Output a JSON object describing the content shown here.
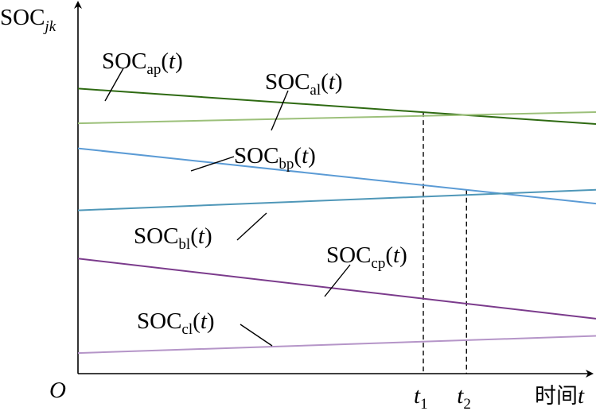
{
  "chart_data": {
    "type": "line",
    "title": "",
    "xlabel": "时间t",
    "ylabel": "SOCjk",
    "origin_label": "O",
    "x_ticks": [
      {
        "name": "t1",
        "label_main": "t",
        "label_sub": "1",
        "x": 0.8
      },
      {
        "name": "t2",
        "label_main": "t",
        "label_sub": "2",
        "x": 0.9
      }
    ],
    "xlim": [
      0,
      1.2
    ],
    "ylim": [
      0,
      1
    ],
    "xlabel_parts": {
      "cn": "时间",
      "var": "t"
    },
    "ylabel_parts": {
      "main": "SOC",
      "sub": "jk"
    },
    "grid": false,
    "series": [
      {
        "name": "SOCap(t)",
        "label_main": "SOC",
        "label_sub": "ap",
        "label_tail": "(t)",
        "color": "#2e6a12",
        "x": [
          0,
          1.2
        ],
        "y": [
          0.763,
          0.668
        ]
      },
      {
        "name": "SOCal(t)",
        "label_main": "SOC",
        "label_sub": "al",
        "label_tail": "(t)",
        "color": "#9cc07a",
        "x": [
          0,
          1.2
        ],
        "y": [
          0.67,
          0.7
        ]
      },
      {
        "name": "SOCbp(t)",
        "label_main": "SOC",
        "label_sub": "bp",
        "label_tail": "(t)",
        "color": "#5b9bd5",
        "x": [
          0,
          1.2
        ],
        "y": [
          0.603,
          0.455
        ]
      },
      {
        "name": "SOCbl(t)",
        "label_main": "SOC",
        "label_sub": "bl",
        "label_tail": "(t)",
        "color": "#4f97b8",
        "x": [
          0,
          1.2
        ],
        "y": [
          0.437,
          0.492
        ]
      },
      {
        "name": "SOCcp(t)",
        "label_main": "SOC",
        "label_sub": "cp",
        "label_tail": "(t)",
        "color": "#7b3b8c",
        "x": [
          0,
          1.2
        ],
        "y": [
          0.308,
          0.147
        ]
      },
      {
        "name": "SOCcl(t)",
        "label_main": "SOC",
        "label_sub": "cl",
        "label_tail": "(t)",
        "color": "#b595c8",
        "x": [
          0,
          1.2
        ],
        "y": [
          0.055,
          0.101
        ]
      }
    ]
  }
}
